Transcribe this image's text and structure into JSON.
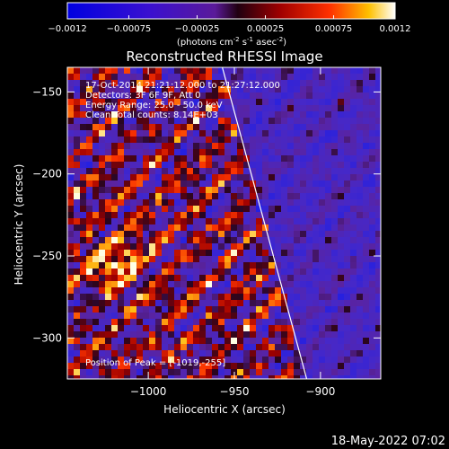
{
  "colorbar": {
    "ticks": [
      "-0.0012",
      "-0.00075",
      "-0.00025",
      "0.00025",
      "0.00075",
      "0.0012"
    ],
    "units_text": "(photons cm",
    "units_sup1": "-2",
    "units_mid1": " s",
    "units_sup2": "-1",
    "units_mid2": " asec",
    "units_sup3": "-2",
    "units_end": ")",
    "min": -0.0012,
    "max": 0.0012
  },
  "info": {
    "time": "17-Oct-2014 21:21:12.000 to 21:27:12.000",
    "detectors": "Detectors: 3F 6F 9F, Att 0",
    "energy": "Energy Range: 25.0 - 50.0 keV",
    "clean": "Clean     Total counts: 8.14E+03",
    "peak": "Position of Peak = [-1019,-255]"
  },
  "footer": {
    "timestamp": "18-May-2022 07:02"
  },
  "chart_data": {
    "type": "heatmap",
    "title": "Reconstructed RHESSI Image",
    "xlabel": "Heliocentric X (arcsec)",
    "ylabel": "Heliocentric Y (arcsec)",
    "xlim": [
      -1047,
      -865
    ],
    "ylim": [
      -325,
      -135
    ],
    "xticks": [
      -1000,
      -950,
      -900
    ],
    "xtick_labels": [
      "−1000",
      "−950",
      "−900"
    ],
    "yticks": [
      -150,
      -200,
      -250,
      -300
    ],
    "ytick_labels": [
      "−150",
      "−200",
      "−250",
      "−300"
    ],
    "limb_line": {
      "x": [
        -957,
        -908
      ],
      "y": [
        -135,
        -325
      ]
    },
    "peak": {
      "x": -1019,
      "y": -255
    },
    "colormap": "blue-purple-red-yellow-white"
  }
}
